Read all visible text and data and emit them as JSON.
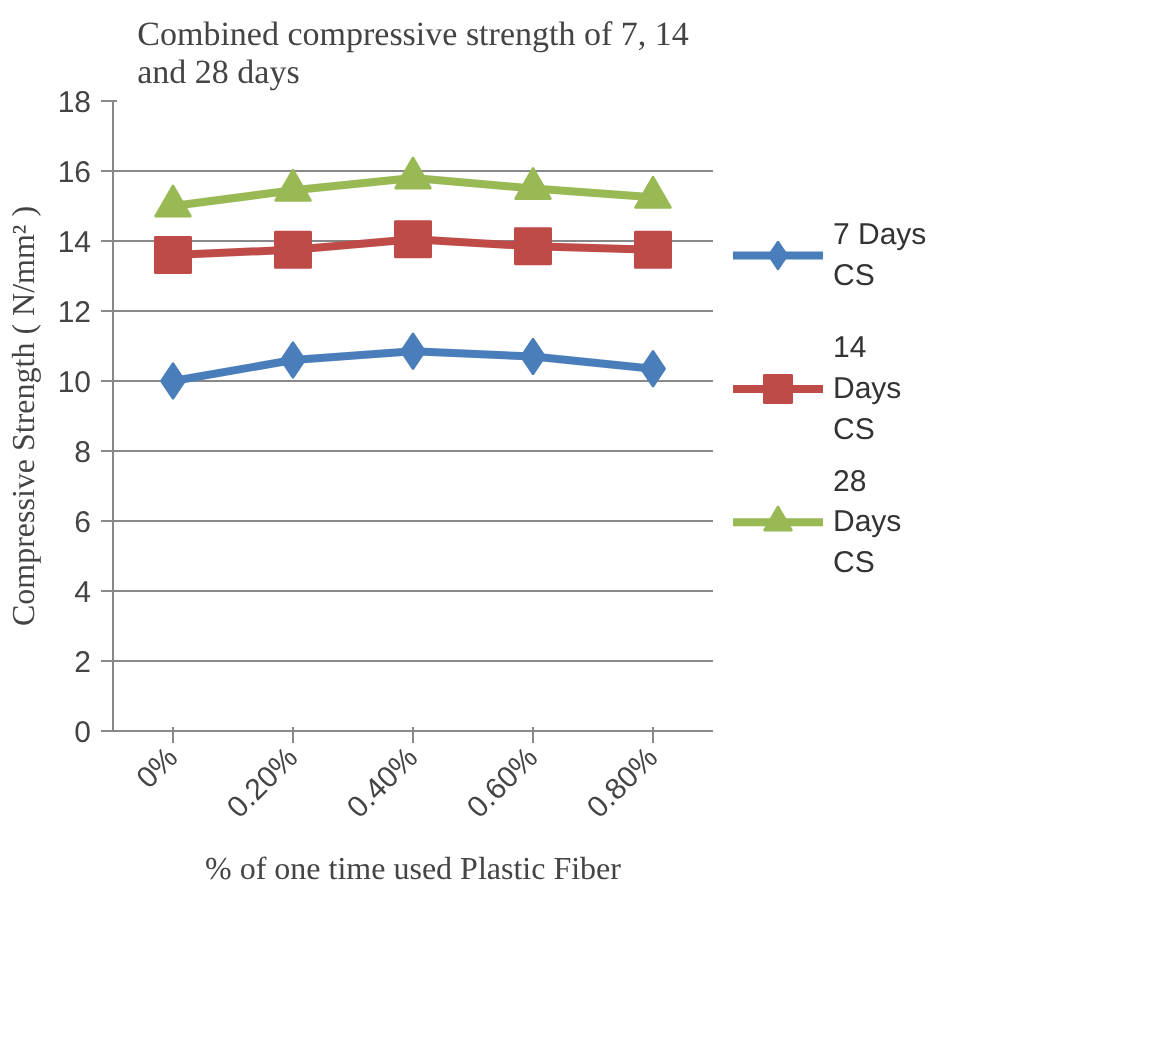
{
  "chart_data": {
    "type": "line",
    "title": "Combined compressive strength of 7, 14 and  28 days",
    "xlabel": "% of one time used Plastic Fiber",
    "ylabel": "Compressive Strength ( N/mm² )",
    "categories": [
      "0%",
      "0.20%",
      "0.40%",
      "0.60%",
      "0.80%"
    ],
    "series": [
      {
        "name": "7 Days CS",
        "color": "#4a7ebb",
        "marker": "diamond",
        "values": [
          10.0,
          10.6,
          10.85,
          10.7,
          10.35
        ]
      },
      {
        "name": "14 Days CS",
        "color": "#be4b48",
        "marker": "square",
        "values": [
          13.6,
          13.75,
          14.05,
          13.85,
          13.75
        ]
      },
      {
        "name": "28 Days CS",
        "color": "#98b954",
        "marker": "triangle",
        "values": [
          15.0,
          15.45,
          15.8,
          15.5,
          15.25
        ]
      }
    ],
    "ylim": [
      0,
      18
    ],
    "yticks": [
      0,
      2,
      4,
      6,
      8,
      10,
      12,
      14,
      16,
      18
    ],
    "grid": "y",
    "legend": "right",
    "line_style": "solid"
  }
}
